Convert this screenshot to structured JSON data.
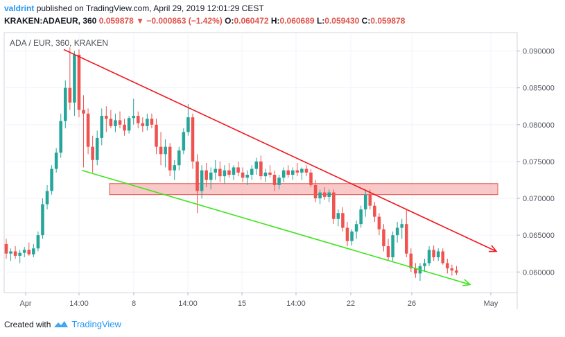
{
  "header": {
    "author": "valdrint",
    "published_text": "published on TradingView.com, April 29, 2019 12:01:29 CEST",
    "symbol": "KRAKEN:ADAEUR, 360",
    "last": "0.059878",
    "change": "−0.000863 (−1.42%)",
    "o_label": "O:",
    "o_val": "0.060472",
    "h_label": "H:",
    "h_val": "0.060689",
    "l_label": "L:",
    "l_val": "0.059430",
    "c_label": "C:",
    "c_val": "0.059878"
  },
  "footer": {
    "created_with": "Created with",
    "brand": "TradingView"
  },
  "colors": {
    "up": "#26a69a",
    "down": "#ef5350",
    "resistance": "#f0151c",
    "support": "#3ee51d",
    "zone": "#f7b6b6",
    "axis_text": "#50535e",
    "grid": "#f0f3fa"
  },
  "chart_data": {
    "type": "candlestick",
    "title": "ADA / EUR, 360, KRAKEN",
    "y_ticks": [
      "0.090000",
      "0.085000",
      "0.080000",
      "0.075000",
      "0.070000",
      "0.065000",
      "0.060000"
    ],
    "x_ticks": [
      "Apr",
      "14:00",
      "8",
      "14:00",
      "15",
      "14:00",
      "22",
      "26",
      "May"
    ],
    "ylim": [
      0.0572,
      0.0925
    ],
    "candles": [
      [
        0.0638,
        0.0645,
        0.0618,
        0.0625
      ],
      [
        0.0625,
        0.0632,
        0.0615,
        0.0628
      ],
      [
        0.0628,
        0.0635,
        0.0618,
        0.0622
      ],
      [
        0.0622,
        0.063,
        0.0612,
        0.0626
      ],
      [
        0.0626,
        0.0634,
        0.062,
        0.063
      ],
      [
        0.063,
        0.064,
        0.0622,
        0.0624
      ],
      [
        0.0624,
        0.0638,
        0.062,
        0.0632
      ],
      [
        0.0632,
        0.0655,
        0.0628,
        0.065
      ],
      [
        0.065,
        0.07,
        0.0645,
        0.0692
      ],
      [
        0.0692,
        0.0718,
        0.0685,
        0.071
      ],
      [
        0.071,
        0.0745,
        0.0705,
        0.074
      ],
      [
        0.074,
        0.0768,
        0.0735,
        0.0762
      ],
      [
        0.0762,
        0.0815,
        0.0755,
        0.0805
      ],
      [
        0.0805,
        0.086,
        0.0795,
        0.085
      ],
      [
        0.085,
        0.0905,
        0.082,
        0.083
      ],
      [
        0.083,
        0.09,
        0.0812,
        0.0895
      ],
      [
        0.0895,
        0.0902,
        0.081,
        0.082
      ],
      [
        0.082,
        0.084,
        0.0742,
        0.0815
      ],
      [
        0.0815,
        0.0822,
        0.076,
        0.077
      ],
      [
        0.077,
        0.0785,
        0.0735,
        0.0752
      ],
      [
        0.0752,
        0.0792,
        0.0745,
        0.0782
      ],
      [
        0.0782,
        0.0822,
        0.0772,
        0.0812
      ],
      [
        0.0812,
        0.0825,
        0.079,
        0.0808
      ],
      [
        0.0808,
        0.082,
        0.0795,
        0.0798
      ],
      [
        0.0798,
        0.0815,
        0.079,
        0.0806
      ],
      [
        0.0806,
        0.0818,
        0.0795,
        0.08
      ],
      [
        0.08,
        0.0808,
        0.0785,
        0.0792
      ],
      [
        0.0792,
        0.0812,
        0.0788,
        0.0809
      ],
      [
        0.0809,
        0.0835,
        0.08,
        0.0812
      ],
      [
        0.0812,
        0.0818,
        0.0795,
        0.0802
      ],
      [
        0.0802,
        0.081,
        0.079,
        0.0798
      ],
      [
        0.0798,
        0.0815,
        0.0792,
        0.0808
      ],
      [
        0.0808,
        0.0815,
        0.0795,
        0.08
      ],
      [
        0.08,
        0.0808,
        0.076,
        0.077
      ],
      [
        0.077,
        0.079,
        0.0745,
        0.076
      ],
      [
        0.076,
        0.078,
        0.0742,
        0.077
      ],
      [
        0.077,
        0.0775,
        0.073,
        0.0738
      ],
      [
        0.0738,
        0.0752,
        0.0725,
        0.0745
      ],
      [
        0.0745,
        0.077,
        0.0738,
        0.0765
      ],
      [
        0.0765,
        0.0795,
        0.076,
        0.079
      ],
      [
        0.079,
        0.0828,
        0.0785,
        0.081
      ],
      [
        0.081,
        0.0815,
        0.074,
        0.075
      ],
      [
        0.075,
        0.076,
        0.068,
        0.071
      ],
      [
        0.071,
        0.0745,
        0.07,
        0.0738
      ],
      [
        0.0738,
        0.0748,
        0.0715,
        0.0725
      ],
      [
        0.0725,
        0.0742,
        0.0712,
        0.0735
      ],
      [
        0.0735,
        0.0752,
        0.0725,
        0.074
      ],
      [
        0.074,
        0.075,
        0.0722,
        0.073
      ],
      [
        0.073,
        0.0745,
        0.072,
        0.0738
      ],
      [
        0.0738,
        0.0748,
        0.0728,
        0.0732
      ],
      [
        0.0732,
        0.0745,
        0.0725,
        0.0742
      ],
      [
        0.0742,
        0.075,
        0.073,
        0.0735
      ],
      [
        0.0735,
        0.0742,
        0.0722,
        0.0728
      ],
      [
        0.0728,
        0.0738,
        0.0718,
        0.0732
      ],
      [
        0.0732,
        0.0745,
        0.0725,
        0.074
      ],
      [
        0.074,
        0.0755,
        0.0732,
        0.075
      ],
      [
        0.075,
        0.0758,
        0.0725,
        0.073
      ],
      [
        0.073,
        0.074,
        0.0722,
        0.0735
      ],
      [
        0.0735,
        0.0745,
        0.0728,
        0.0732
      ],
      [
        0.0732,
        0.0738,
        0.071,
        0.0718
      ],
      [
        0.0718,
        0.0732,
        0.0712,
        0.0728
      ],
      [
        0.0728,
        0.0742,
        0.0722,
        0.0738
      ],
      [
        0.0738,
        0.0745,
        0.0728,
        0.0732
      ],
      [
        0.0732,
        0.0742,
        0.0725,
        0.0738
      ],
      [
        0.0738,
        0.0748,
        0.073,
        0.0735
      ],
      [
        0.0735,
        0.0742,
        0.0725,
        0.074
      ],
      [
        0.074,
        0.0745,
        0.073,
        0.0735
      ],
      [
        0.0735,
        0.074,
        0.0715,
        0.0718
      ],
      [
        0.0718,
        0.0725,
        0.0695,
        0.07
      ],
      [
        0.07,
        0.0712,
        0.0692,
        0.0708
      ],
      [
        0.0708,
        0.0715,
        0.0698,
        0.0702
      ],
      [
        0.0702,
        0.0712,
        0.0695,
        0.0708
      ],
      [
        0.0708,
        0.0712,
        0.0665,
        0.0672
      ],
      [
        0.0672,
        0.0685,
        0.0662,
        0.068
      ],
      [
        0.068,
        0.0688,
        0.0655,
        0.066
      ],
      [
        0.066,
        0.0668,
        0.0635,
        0.0642
      ],
      [
        0.0642,
        0.0658,
        0.0636,
        0.0655
      ],
      [
        0.0655,
        0.067,
        0.0645,
        0.0665
      ],
      [
        0.0665,
        0.069,
        0.066,
        0.0685
      ],
      [
        0.0685,
        0.0712,
        0.0675,
        0.0705
      ],
      [
        0.0705,
        0.0712,
        0.0685,
        0.069
      ],
      [
        0.069,
        0.0695,
        0.0668,
        0.0675
      ],
      [
        0.0675,
        0.068,
        0.065,
        0.0658
      ],
      [
        0.0658,
        0.0665,
        0.0628,
        0.0635
      ],
      [
        0.0635,
        0.0645,
        0.0615,
        0.062
      ],
      [
        0.062,
        0.0655,
        0.0615,
        0.065
      ],
      [
        0.065,
        0.0668,
        0.064,
        0.066
      ],
      [
        0.066,
        0.0672,
        0.0645,
        0.0665
      ],
      [
        0.0665,
        0.0685,
        0.062,
        0.0625
      ],
      [
        0.0625,
        0.0632,
        0.06,
        0.0605
      ],
      [
        0.0605,
        0.0612,
        0.0592,
        0.0598
      ],
      [
        0.0598,
        0.0612,
        0.0588,
        0.0608
      ],
      [
        0.0608,
        0.0618,
        0.06,
        0.0612
      ],
      [
        0.0612,
        0.0635,
        0.0608,
        0.063
      ],
      [
        0.063,
        0.0636,
        0.0615,
        0.062
      ],
      [
        0.062,
        0.0632,
        0.0615,
        0.0628
      ],
      [
        0.0628,
        0.0632,
        0.061,
        0.0612
      ],
      [
        0.0612,
        0.0618,
        0.0598,
        0.0605
      ],
      [
        0.0605,
        0.061,
        0.0595,
        0.0602
      ],
      [
        0.0602,
        0.0608,
        0.0596,
        0.0599
      ]
    ],
    "annotations": {
      "resistance_line": {
        "from_price": 0.0902,
        "to_price": 0.0628,
        "arrow": true
      },
      "support_line": {
        "from_price": 0.0738,
        "to_price": 0.0583,
        "arrow": true
      },
      "resistance_zone": {
        "top": 0.072,
        "bottom": 0.0705
      }
    }
  }
}
